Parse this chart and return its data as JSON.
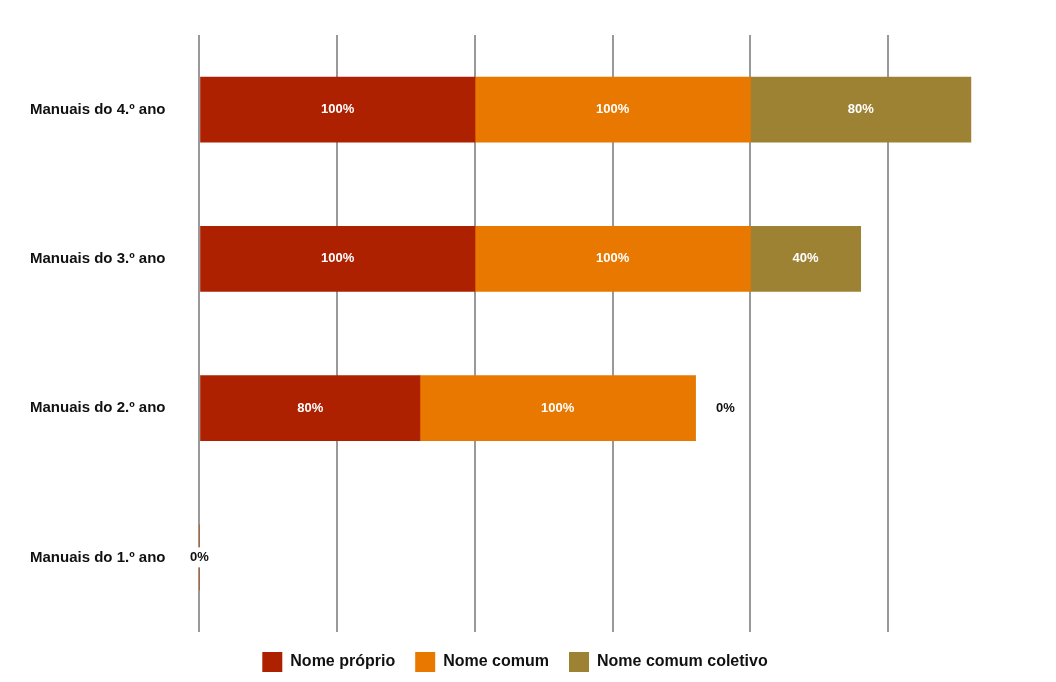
{
  "chart_data": {
    "type": "bar",
    "orientation": "horizontal",
    "stacked": true,
    "categories": [
      "Manuais do 4.º ano",
      "Manuais do 3.º ano",
      "Manuais do 2.º ano",
      "Manuais do 1.º ano"
    ],
    "series": [
      {
        "name": "Nome próprio",
        "color": "#ad2100",
        "values": [
          100,
          100,
          80,
          0
        ],
        "value_labels": [
          "100%",
          "100%",
          "80%",
          "0%"
        ]
      },
      {
        "name": "Nome comum",
        "color": "#e87800",
        "values": [
          100,
          100,
          100,
          0
        ],
        "value_labels": [
          "100%",
          "100%",
          "100%",
          null
        ]
      },
      {
        "name": "Nome comum coletivo",
        "color": "#9e8234",
        "values": [
          80,
          40,
          0,
          0
        ],
        "value_labels": [
          "80%",
          "40%",
          "0%",
          null
        ]
      }
    ],
    "xticks": [
      {
        "value": 0,
        "label": null
      },
      {
        "value": 50,
        "label": null
      },
      {
        "value": 100,
        "label": null
      },
      {
        "value": 150,
        "label": null
      },
      {
        "value": 200,
        "label": null
      },
      {
        "value": 250,
        "label": null
      }
    ],
    "grid": "x",
    "tick_labels": "y",
    "legend": "bottom"
  }
}
